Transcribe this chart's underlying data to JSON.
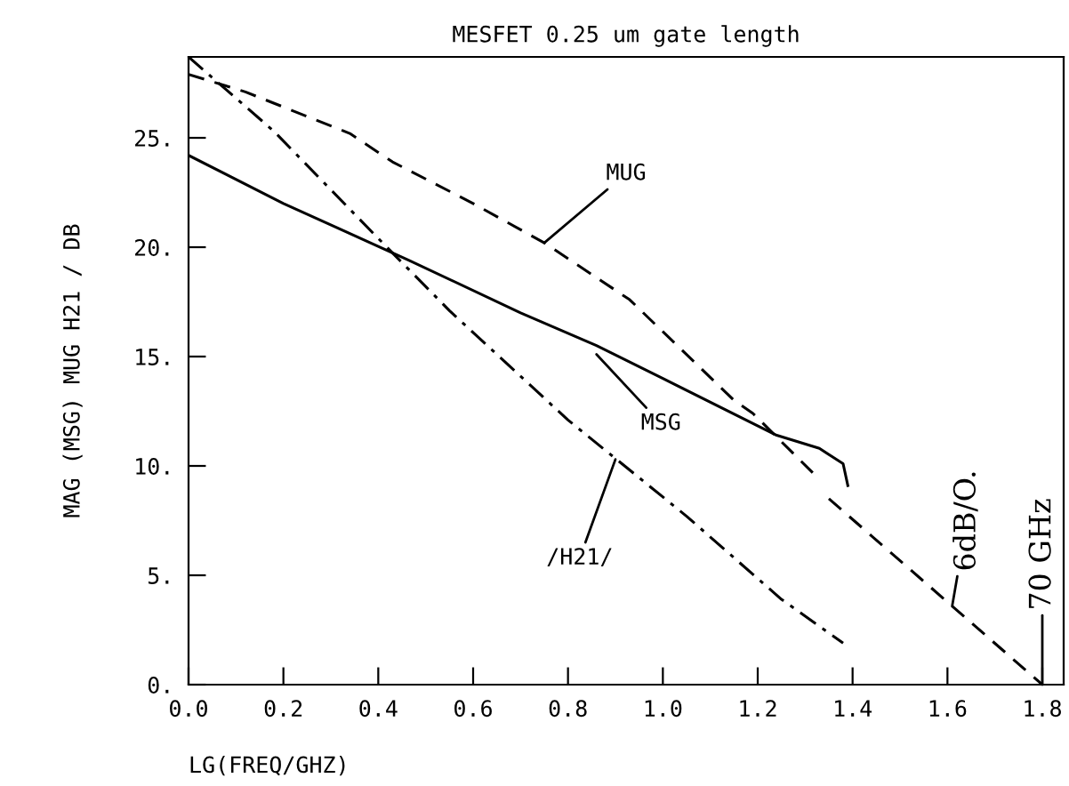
{
  "chart_data": {
    "type": "line",
    "title": "MESFET 0.25 um gate length",
    "xlabel": "LG(FREQ/GHZ)",
    "ylabel": "MAG (MSG) MUG H21 / DB",
    "xlim": [
      0,
      1.845
    ],
    "ylim": [
      0,
      28.7
    ],
    "xticks": [
      {
        "value": 0,
        "label": "0.0"
      },
      {
        "value": 0.2,
        "label": "0.2"
      },
      {
        "value": 0.4,
        "label": "0.4"
      },
      {
        "value": 0.6,
        "label": "0.6"
      },
      {
        "value": 0.8,
        "label": "0.8"
      },
      {
        "value": 1,
        "label": "1.0"
      },
      {
        "value": 1.2,
        "label": "1.2"
      },
      {
        "value": 1.4,
        "label": "1.4"
      },
      {
        "value": 1.6,
        "label": "1.6"
      },
      {
        "value": 1.8,
        "label": "1.8"
      }
    ],
    "yticks": [
      {
        "value": 0,
        "label": "0."
      },
      {
        "value": 5,
        "label": "5."
      },
      {
        "value": 10,
        "label": "10."
      },
      {
        "value": 15,
        "label": "15."
      },
      {
        "value": 20,
        "label": "20."
      },
      {
        "value": 25,
        "label": "25."
      }
    ],
    "grid": false,
    "legend": false,
    "series": [
      {
        "color": "#000000",
        "line_style": "solid",
        "x": [
          0,
          0.2,
          0.465,
          0.7,
          0.86,
          1.0,
          1.24,
          1.33,
          1.38,
          1.39
        ],
        "values": [
          24.2,
          22.0,
          19.4,
          17.0,
          15.5,
          14.0,
          11.4,
          10.8,
          10.1,
          9.1
        ]
      },
      {
        "color": "#000000",
        "line_style": "dashed",
        "x": [
          0,
          0.12,
          0.34,
          0.43,
          0.6,
          0.75,
          0.93,
          1.15,
          1.19,
          1.32
        ],
        "values": [
          27.9,
          27.1,
          25.2,
          23.9,
          22.0,
          20.2,
          17.6,
          13.0,
          12.4,
          9.6
        ]
      },
      {
        "color": "#000000",
        "line_style": "dashdot",
        "x": [
          0,
          0.18,
          0.4,
          0.55,
          0.8,
          1.05,
          1.25,
          1.38
        ],
        "values": [
          28.7,
          25.3,
          20.4,
          17.1,
          12.1,
          7.7,
          3.9,
          1.9
        ]
      },
      {
        "color": "#000000",
        "line_style": "dashed",
        "x": [
          1.35,
          1.8
        ],
        "values": [
          8.5,
          0
        ]
      }
    ],
    "annotations": [
      {
        "text": "MUG",
        "x": 0.75,
        "y": 20.2
      },
      {
        "text": "MSG",
        "x": 0.86,
        "y": 15.1
      },
      {
        "text": "/H21/",
        "x": 0.9,
        "y": 10.3
      },
      {
        "text": "6dB/O.",
        "x": 1.61,
        "y": 3.6
      },
      {
        "text": "70 GHz",
        "x": 1.8,
        "y": 0
      }
    ]
  }
}
